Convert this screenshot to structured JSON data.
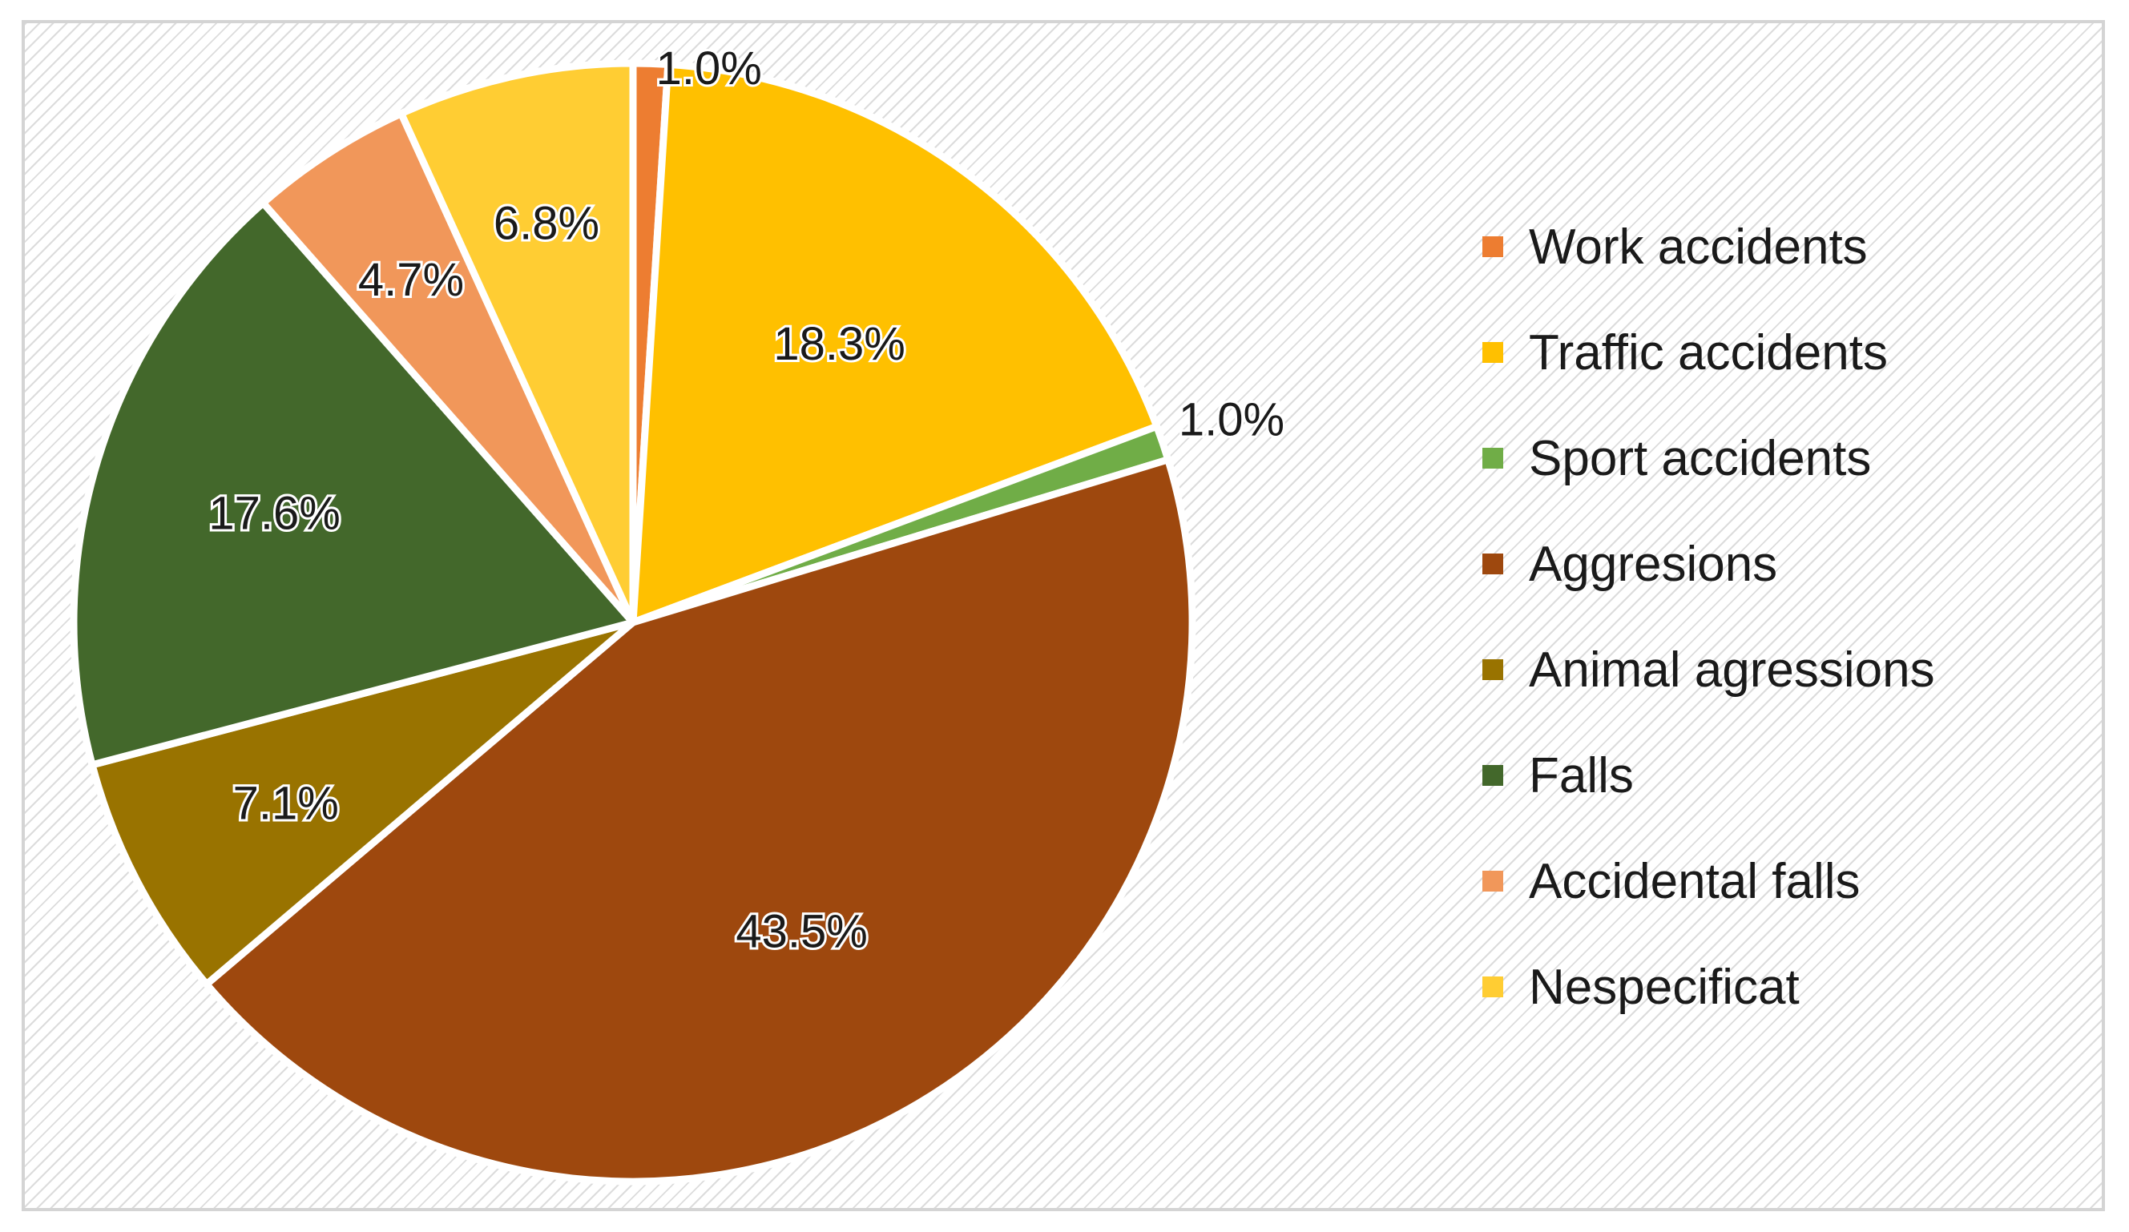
{
  "chart_data": {
    "type": "pie",
    "categories": [
      "Work accidents",
      "Traffic accidents",
      "Sport accidents",
      "Aggresions",
      "Animal agressions",
      "Falls",
      "Accidental falls",
      "Nespecificat"
    ],
    "values": [
      1.0,
      18.3,
      1.0,
      43.5,
      7.1,
      17.6,
      4.7,
      6.8
    ],
    "data_labels": [
      "1.0%",
      "18.3%",
      "1.0%",
      "43.5%",
      "7.1%",
      "17.6%",
      "4.7%",
      "6.8%"
    ],
    "colors": [
      "#ed7d31",
      "#ffc000",
      "#70ad47",
      "#9e480e",
      "#997300",
      "#43682b",
      "#f1975a",
      "#ffcd33"
    ],
    "start_angle_deg": 0,
    "direction": "clockwise",
    "legend_position": "right",
    "background": "diagonal-hatch"
  }
}
